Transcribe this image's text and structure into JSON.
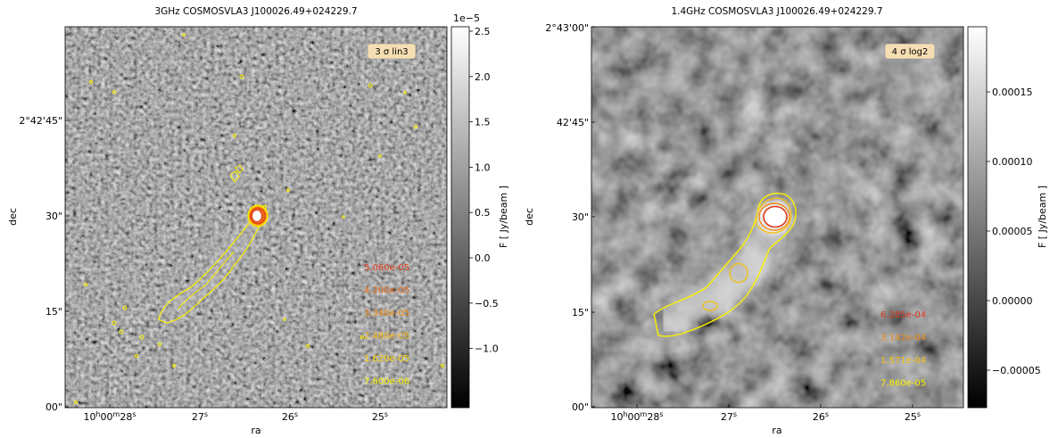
{
  "panels": [
    {
      "title": "3GHz  COSMOSVLA3 J100026.49+024229.7",
      "xlabel": "ra",
      "ylabel": "dec",
      "x_ticks": [
        "10h00m28s",
        "27s",
        "26s",
        "25s"
      ],
      "y_ticks": [
        "2°42'45\"",
        "30\"",
        "15\"",
        "00\""
      ],
      "badge": "3 σ  lin3",
      "colorbar": {
        "label": "F [ Jy/beam ]",
        "offset_text": "1e−5",
        "ticks": [
          "2.5",
          "2.0",
          "1.5",
          "1.0",
          "0.5",
          "0.0",
          "−0.5",
          "−1.0"
        ]
      },
      "contour_levels": [
        {
          "text": "5.060e-05",
          "color": "#e0391d"
        },
        {
          "text": "4.200e-05",
          "color": "#ec6a16"
        },
        {
          "text": "3.340e-05",
          "color": "#f28f10"
        },
        {
          "text": "2.480e-05",
          "color": "#f6b40b"
        },
        {
          "text": "1.620e-05",
          "color": "#f9d406"
        },
        {
          "text": "7.600e-06",
          "color": "#fbf200"
        }
      ]
    },
    {
      "title": "1.4GHz COSMOSVLA3 J100026.49+024229.7",
      "xlabel": "ra",
      "ylabel": "dec",
      "x_ticks": [
        "10h00m28s",
        "27s",
        "26s",
        "25s"
      ],
      "y_ticks": [
        "2°43'00\"",
        "42'45\"",
        "30\"",
        "15\"",
        "00\""
      ],
      "badge": "4 σ  log2",
      "colorbar": {
        "label": "F [ Jy/beam ]",
        "offset_text": "",
        "ticks": [
          "0.00015",
          "0.00010",
          "0.00005",
          "0.00000",
          "−0.00005"
        ]
      },
      "contour_levels": [
        {
          "text": "6.285e-04",
          "color": "#e0391d"
        },
        {
          "text": "3.142e-04",
          "color": "#ef8a12"
        },
        {
          "text": "1.571e-04",
          "color": "#f7bf09"
        },
        {
          "text": "7.860e-05",
          "color": "#fbf200"
        }
      ]
    }
  ]
}
